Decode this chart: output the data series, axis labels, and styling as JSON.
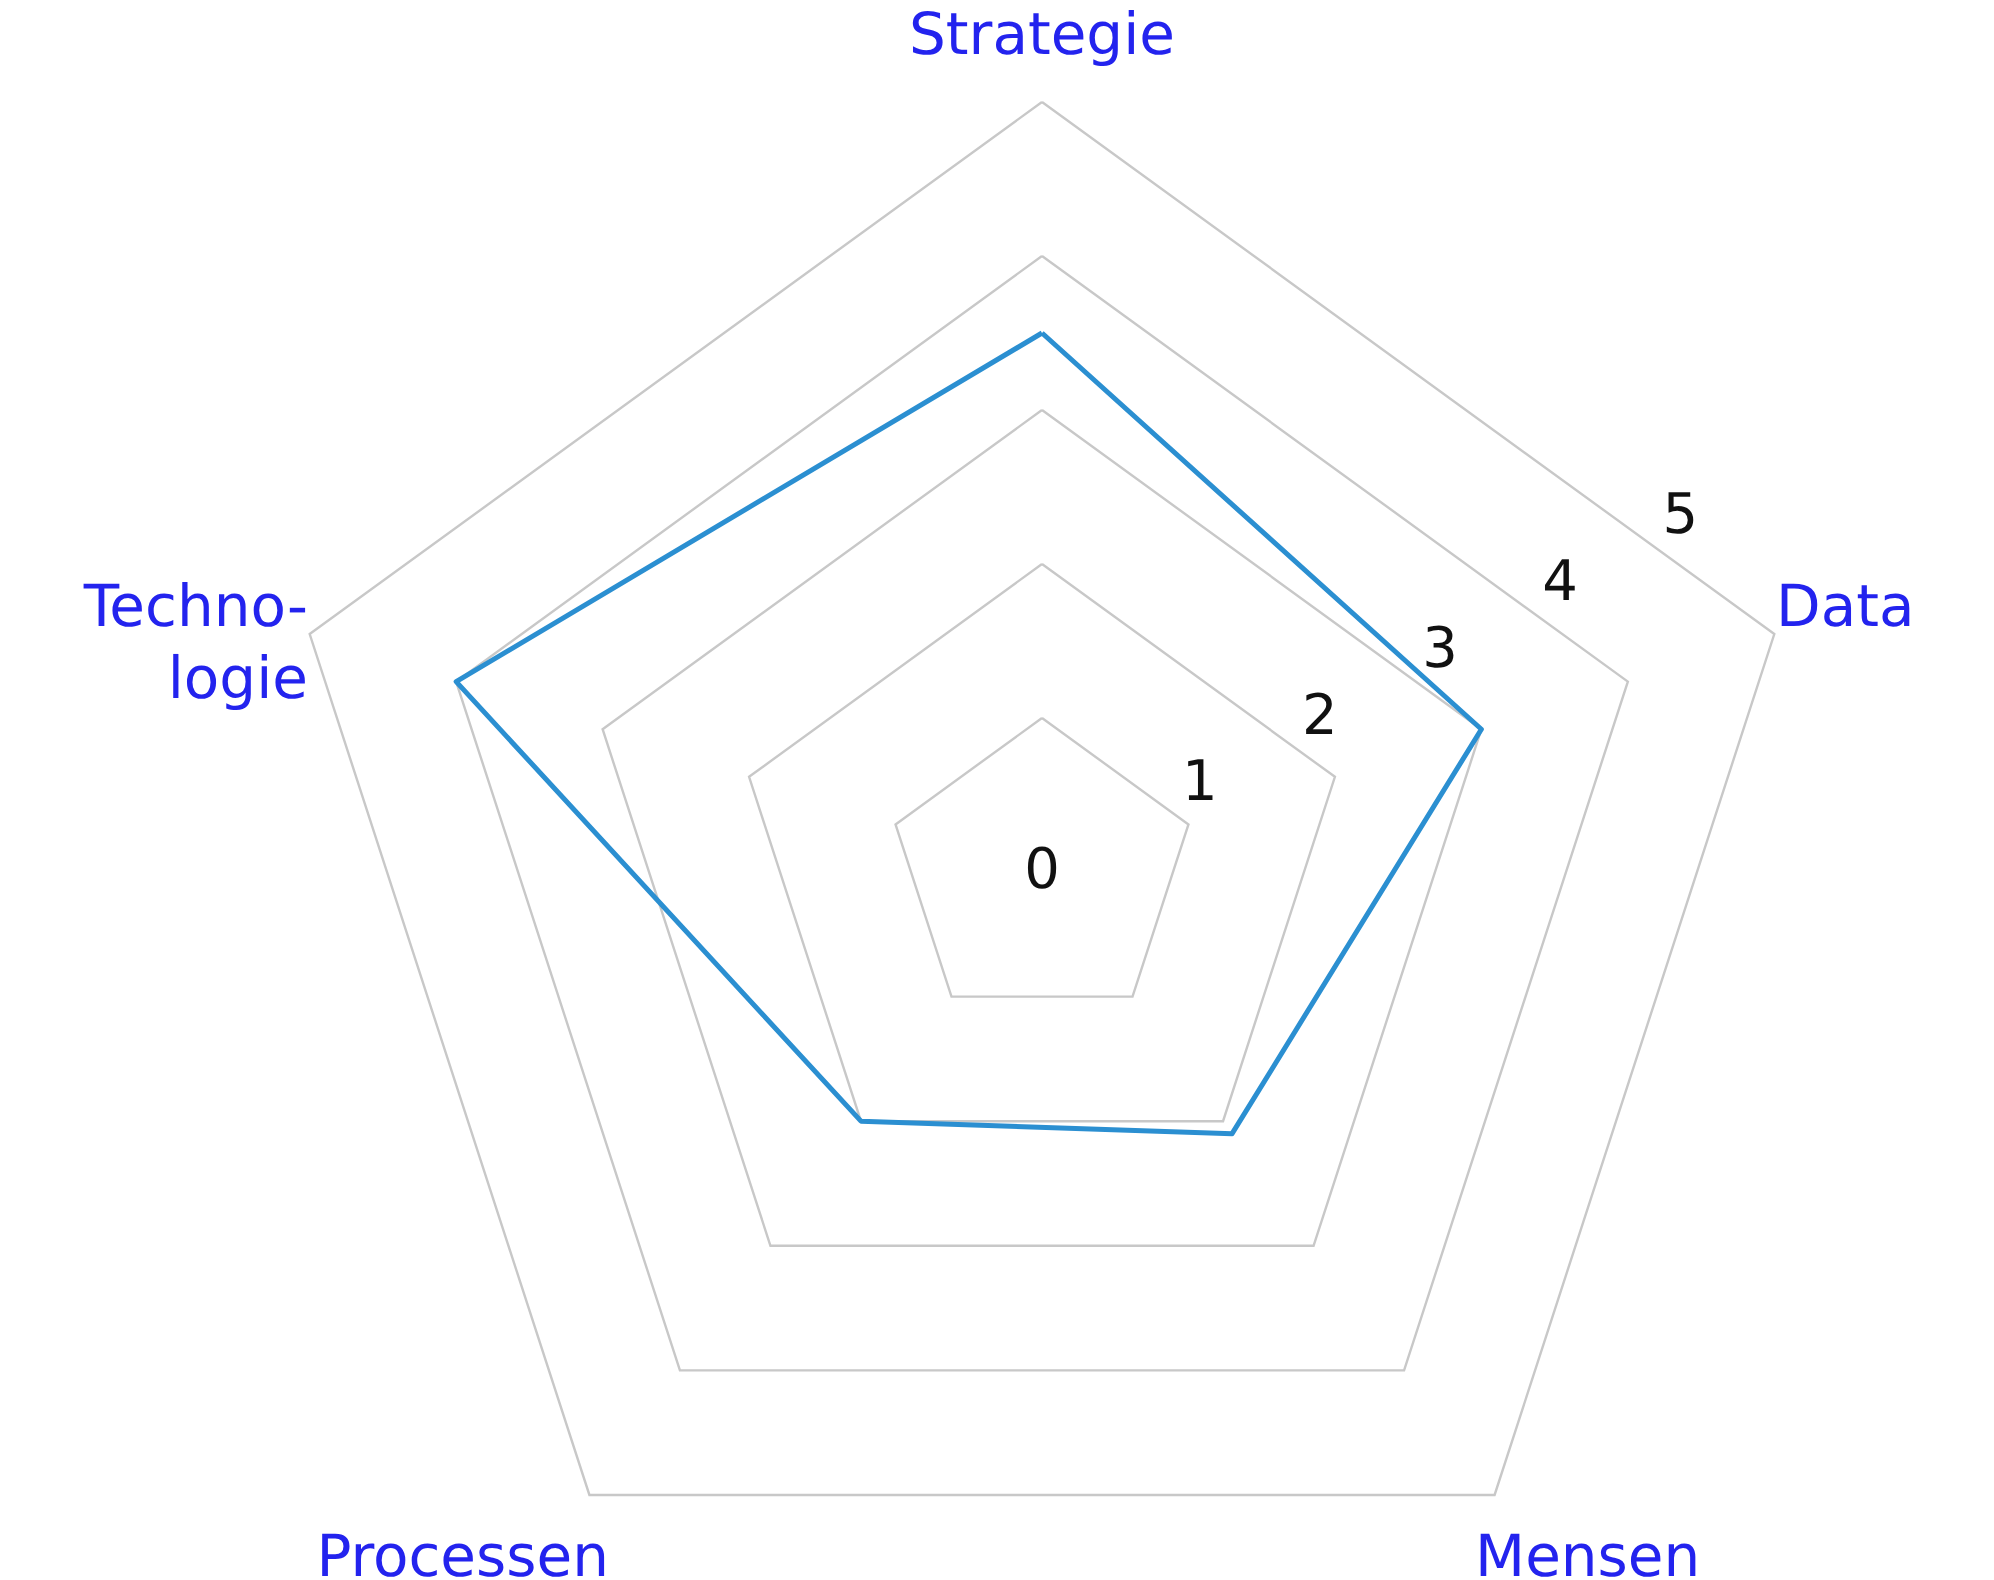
{
  "chart_data": {
    "type": "radar",
    "categories": [
      "Strategie",
      "Data",
      "Mensen",
      "Processen",
      "Techno-\nlogie"
    ],
    "series": [
      {
        "color": "#2b8fd1",
        "values": [
          3.5,
          3,
          2.1,
          2,
          4
        ]
      }
    ],
    "ylim": [
      0,
      5
    ],
    "yticks": [
      0,
      1,
      2,
      3,
      4,
      5
    ],
    "grid": true,
    "marker": "none",
    "line_style": "solid"
  }
}
